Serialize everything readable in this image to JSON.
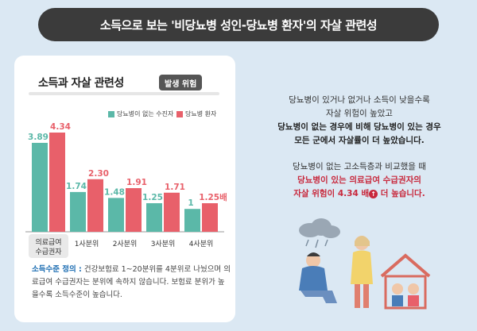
{
  "banner": {
    "title": "소득으로 보는 '비당뇨병 성인-당뇨병 환자'의 자살 관련성"
  },
  "card": {
    "title": "소득과 자살 관련성",
    "badge": "발생 위험",
    "definition_label": "소득수준 정의 :",
    "definition_text": " 건강보험료 1~20분위를 4분위로 나눴으며 의료급여 수급권자는 분위에 속하지 않습니다. 보험료 분위가 높을수록 소득수준이 높습니다."
  },
  "chart_data": {
    "type": "bar",
    "categories": [
      "의료급여\n수급권자",
      "1사분위",
      "2사분위",
      "3사분위",
      "4사분위"
    ],
    "series": [
      {
        "name": "당뇨병이 없는 수진자",
        "color": "#5bb8a8",
        "values": [
          3.89,
          1.74,
          1.48,
          1.25,
          1
        ]
      },
      {
        "name": "당뇨병 환자",
        "color": "#e8606a",
        "values": [
          4.34,
          2.3,
          1.91,
          1.71,
          1.25
        ]
      }
    ],
    "data_labels": {
      "series0": [
        "3.89",
        "1.74",
        "1.48",
        "1.25",
        "1"
      ],
      "series1": [
        "4.34",
        "2.30",
        "1.91",
        "1.71",
        "1.25배"
      ]
    },
    "ylim": [
      0,
      5
    ]
  },
  "right": {
    "p1_line1": "당뇨병이 있거나 없거나 소득이 낮을수록",
    "p1_line2": "자살 위험이 높았고",
    "p1_line3": "당뇨병이 없는 경우에 비해 당뇨병이 있는 경우",
    "p1_line4": "모든 군에서 자살률이 더 높았습니다.",
    "p2_line1": "당뇨병이 없는 고소득층과 비교했을 때",
    "p2_line2": "당뇨병이 있는 의료급여 수급권자의",
    "p2_line3a": "자살 위험이 4.34 배",
    "p2_arrow": "↑",
    "p2_line3b": " 더 높습니다."
  },
  "colors": {
    "teal": "#5bb8a8",
    "red": "#e8606a",
    "highlight": "#c8283c"
  }
}
